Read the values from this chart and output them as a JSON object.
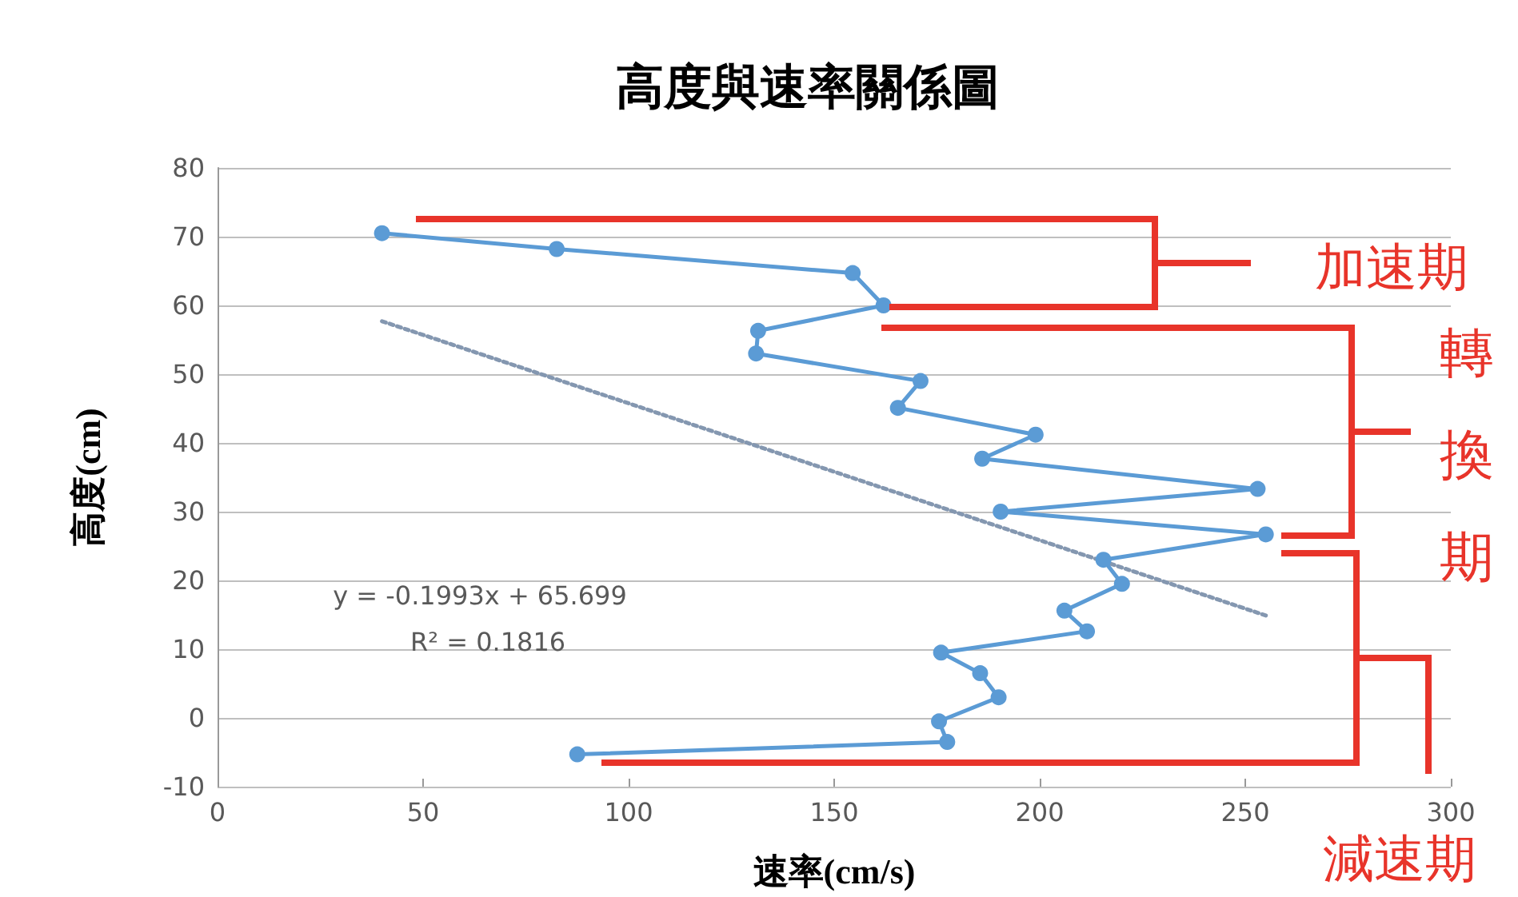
{
  "chart_data": {
    "type": "line",
    "title": "高度與速率關係圖",
    "xlabel": "速率(cm/s)",
    "ylabel": "高度(cm)",
    "xlim": [
      0,
      300
    ],
    "xticks": [
      0,
      50,
      100,
      150,
      200,
      250,
      300
    ],
    "ylim": [
      -10,
      80
    ],
    "yticks": [
      -10,
      0,
      10,
      20,
      30,
      40,
      50,
      60,
      70,
      80
    ],
    "grid": "y",
    "marker": "circle",
    "line_style": "solid",
    "series": [
      {
        "color": "#5b9bd5",
        "x": [
          40,
          82.5,
          154.5,
          162,
          131.5,
          131,
          171,
          165.5,
          199,
          186,
          253,
          190.5,
          255,
          215.5,
          220,
          206,
          211.5,
          176,
          185.5,
          190,
          175.5,
          177.5,
          87.5
        ],
        "values": [
          70.5,
          68.2,
          64.7,
          60,
          56.3,
          53,
          49,
          45.1,
          41.2,
          37.7,
          33.3,
          30,
          26.7,
          23,
          19.5,
          15.6,
          12.6,
          9.5,
          6.5,
          3,
          -0.5,
          -3.5,
          -5.3
        ]
      },
      {
        "color": "#8497b0",
        "marker": "none",
        "line_style": "dotted",
        "x": [
          40,
          255
        ],
        "values": [
          57.7,
          14.9
        ]
      }
    ],
    "annotations": [
      "y = -0.1993x + 65.699",
      "R² = 0.1816",
      "加速期",
      "轉換期",
      "減速期"
    ]
  }
}
